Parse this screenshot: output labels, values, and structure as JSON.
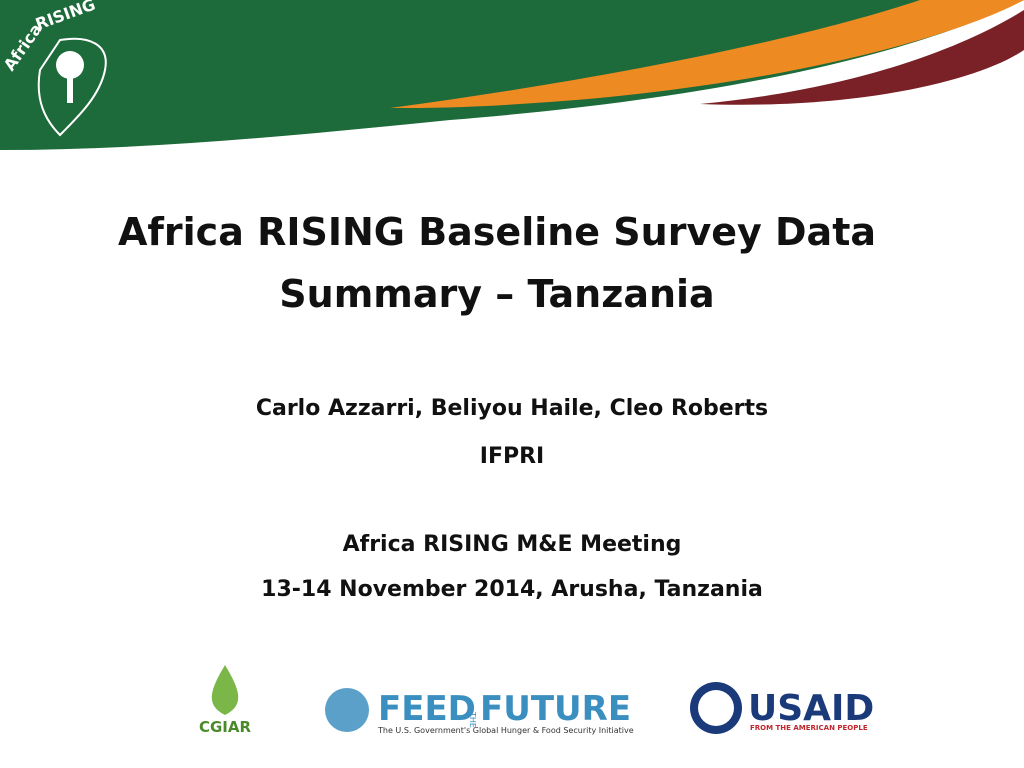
{
  "header": {
    "logo_text_1": "Africa",
    "logo_text_2": "RISING"
  },
  "title_lines": [
    "Africa RISING Baseline Survey Data",
    "Summary – Tanzania"
  ],
  "authors": "Carlo Azzarri, Beliyou Haile, Cleo Roberts",
  "organization": "IFPRI",
  "event": "Africa RISING M&E Meeting",
  "date_place": "13-14 November 2014, Arusha, Tanzania",
  "logos": {
    "cgiar": "CGIAR",
    "feed_1": "FEED",
    "feed_the": "THE",
    "feed_2": "FUTURE",
    "feed_tagline": "The U.S. Government's Global Hunger & Food Security Initiative",
    "usaid": "USAID",
    "usaid_tagline": "FROM THE AMERICAN PEOPLE"
  }
}
